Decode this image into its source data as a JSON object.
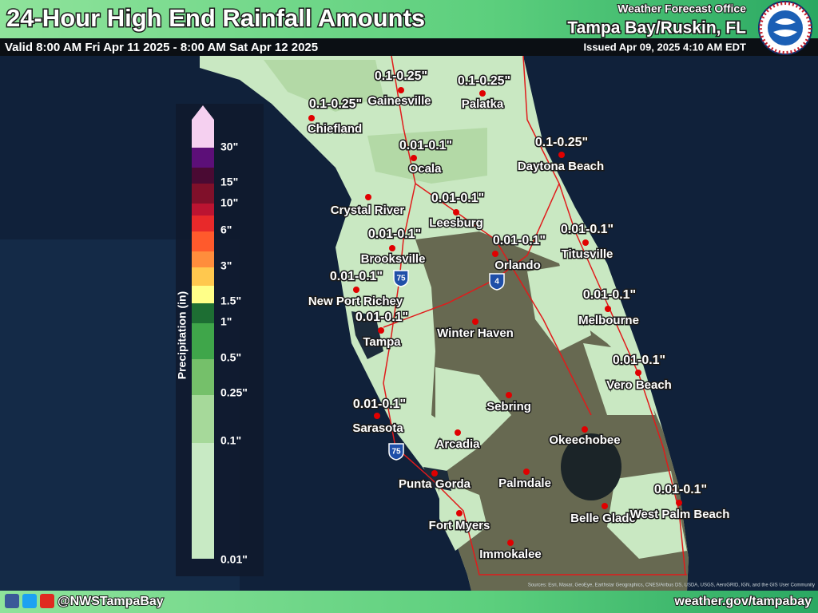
{
  "header": {
    "title": "24-Hour High End Rainfall Amounts",
    "valid": "Valid 8:00 AM Fri Apr 11 2025 - 8:00 AM Sat Apr 12 2025",
    "office": "Weather Forecast Office",
    "location": "Tampa Bay/Ruskin, FL",
    "issued": "Issued Apr 09, 2025 4:10 AM EDT"
  },
  "legend": {
    "title": "Precipitation (in)",
    "labels": [
      "30\"",
      "15\"",
      "10\"",
      "6\"",
      "3\"",
      "1.5\"",
      "1\"",
      "0.5\"",
      "0.25\"",
      "0.1\"",
      "0.01\""
    ]
  },
  "cities": [
    "Gainesville",
    "Palatka",
    "Chiefland",
    "Ocala",
    "Daytona Beach",
    "Crystal River",
    "Leesburg",
    "Brooksville",
    "Orlando",
    "Titusville",
    "New Port Richey",
    "Melbourne",
    "Winter Haven",
    "Tampa",
    "Vero Beach",
    "Sebring",
    "Sarasota",
    "Arcadia",
    "Okeechobee",
    "Punta Gorda",
    "Palmdale",
    "Belle Glade",
    "West Palm Beach",
    "Fort Myers",
    "Immokalee"
  ],
  "amounts": [
    "0.1-0.25\"",
    "0.1-0.25\"",
    "0.1-0.25\"",
    "0.1-0.25\"",
    "0.01-0.1\"",
    "0.01-0.1\"",
    "0.01-0.1\"",
    "0.01-0.1\"",
    "0.01-0.1\"",
    "0.01-0.1\"",
    "0.01-0.1\"",
    "0.01-0.1\"",
    "0.01-0.1\"",
    "0.01-0.1\"",
    "0.01-0.1\""
  ],
  "shields": [
    "75",
    "4",
    "75"
  ],
  "footer": {
    "social": "@NWSTampaBay",
    "url": "weather.gov/tampabay",
    "attribution": "Sources: Esri, Maxar, GeoEye, Earthstar Geographics, CNES/Airbus DS, USDA, USGS, AeroGRID, IGN, and the GIS User Community"
  }
}
